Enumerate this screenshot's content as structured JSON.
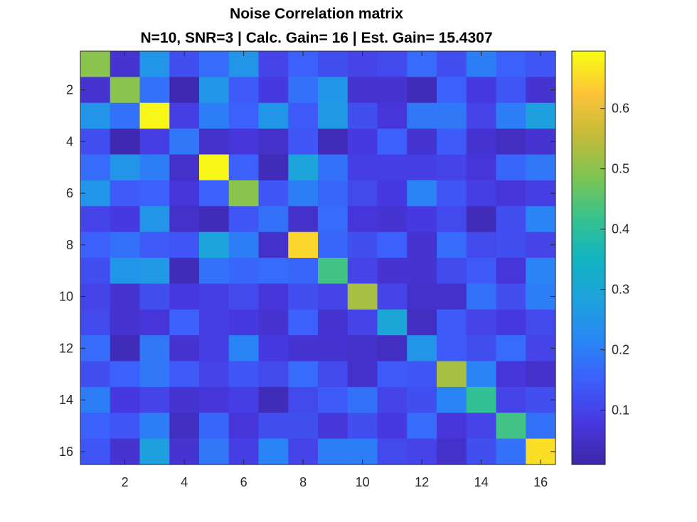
{
  "chart_data": {
    "type": "heatmap",
    "title": "Noise Correlation matrix",
    "subtitle": "N=10, SNR=3 | Calc. Gain= 16 | Est. Gain= 15.4307",
    "xlabel": "",
    "ylabel": "",
    "x_ticks": [
      "2",
      "4",
      "6",
      "8",
      "10",
      "12",
      "14",
      "16"
    ],
    "y_ticks": [
      "2",
      "4",
      "6",
      "8",
      "10",
      "12",
      "14",
      "16"
    ],
    "xlim": [
      0.5,
      16.5
    ],
    "ylim": [
      0.5,
      16.5
    ],
    "y_reversed": true,
    "colormap": "parula",
    "colorbar": {
      "range": [
        0.01,
        0.695
      ],
      "ticks": [
        0.1,
        0.2,
        0.3,
        0.4,
        0.5,
        0.6
      ],
      "tick_labels": [
        "0.1",
        "0.2",
        "0.3",
        "0.4",
        "0.5",
        "0.6"
      ]
    },
    "values": [
      [
        0.5,
        0.06,
        0.25,
        0.12,
        0.17,
        0.25,
        0.1,
        0.15,
        0.12,
        0.1,
        0.11,
        0.17,
        0.12,
        0.2,
        0.15,
        0.13
      ],
      [
        0.06,
        0.5,
        0.18,
        0.02,
        0.25,
        0.14,
        0.08,
        0.18,
        0.25,
        0.06,
        0.06,
        0.03,
        0.15,
        0.08,
        0.13,
        0.06
      ],
      [
        0.25,
        0.18,
        0.69,
        0.09,
        0.2,
        0.15,
        0.25,
        0.14,
        0.26,
        0.12,
        0.07,
        0.19,
        0.19,
        0.1,
        0.2,
        0.28
      ],
      [
        0.12,
        0.02,
        0.09,
        0.19,
        0.05,
        0.07,
        0.05,
        0.13,
        0.03,
        0.08,
        0.15,
        0.06,
        0.14,
        0.06,
        0.04,
        0.06
      ],
      [
        0.17,
        0.25,
        0.2,
        0.05,
        0.69,
        0.15,
        0.03,
        0.29,
        0.18,
        0.09,
        0.09,
        0.09,
        0.1,
        0.07,
        0.16,
        0.19
      ],
      [
        0.25,
        0.14,
        0.15,
        0.07,
        0.15,
        0.5,
        0.13,
        0.2,
        0.16,
        0.11,
        0.08,
        0.21,
        0.13,
        0.09,
        0.07,
        0.09
      ],
      [
        0.1,
        0.08,
        0.25,
        0.05,
        0.03,
        0.13,
        0.18,
        0.05,
        0.17,
        0.07,
        0.06,
        0.08,
        0.11,
        0.03,
        0.12,
        0.21
      ],
      [
        0.15,
        0.18,
        0.14,
        0.13,
        0.29,
        0.2,
        0.05,
        0.65,
        0.16,
        0.12,
        0.15,
        0.06,
        0.17,
        0.11,
        0.12,
        0.1
      ],
      [
        0.12,
        0.25,
        0.26,
        0.03,
        0.18,
        0.16,
        0.17,
        0.16,
        0.43,
        0.1,
        0.06,
        0.06,
        0.11,
        0.14,
        0.07,
        0.21
      ],
      [
        0.1,
        0.06,
        0.12,
        0.08,
        0.09,
        0.11,
        0.07,
        0.12,
        0.1,
        0.53,
        0.1,
        0.05,
        0.05,
        0.18,
        0.12,
        0.2
      ],
      [
        0.11,
        0.06,
        0.07,
        0.15,
        0.09,
        0.08,
        0.06,
        0.15,
        0.06,
        0.1,
        0.3,
        0.04,
        0.14,
        0.1,
        0.08,
        0.11
      ],
      [
        0.17,
        0.03,
        0.19,
        0.06,
        0.09,
        0.21,
        0.08,
        0.06,
        0.06,
        0.05,
        0.04,
        0.25,
        0.14,
        0.12,
        0.17,
        0.1
      ],
      [
        0.12,
        0.15,
        0.19,
        0.14,
        0.1,
        0.13,
        0.11,
        0.17,
        0.11,
        0.05,
        0.14,
        0.13,
        0.53,
        0.21,
        0.07,
        0.05
      ],
      [
        0.2,
        0.08,
        0.1,
        0.06,
        0.07,
        0.09,
        0.03,
        0.11,
        0.14,
        0.18,
        0.1,
        0.12,
        0.21,
        0.41,
        0.1,
        0.12
      ],
      [
        0.15,
        0.13,
        0.2,
        0.04,
        0.16,
        0.07,
        0.12,
        0.12,
        0.07,
        0.12,
        0.08,
        0.17,
        0.07,
        0.1,
        0.43,
        0.18
      ],
      [
        0.13,
        0.06,
        0.28,
        0.06,
        0.19,
        0.09,
        0.21,
        0.1,
        0.2,
        0.2,
        0.11,
        0.1,
        0.05,
        0.12,
        0.18,
        0.66
      ]
    ]
  }
}
